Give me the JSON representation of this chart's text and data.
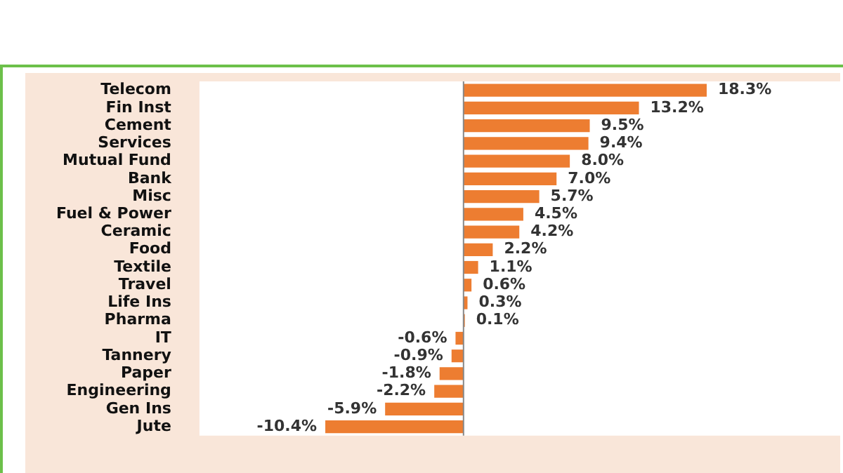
{
  "chart_data": {
    "type": "bar",
    "orientation": "horizontal",
    "categories": [
      "Telecom",
      "Fin Inst",
      "Cement",
      "Services",
      "Mutual Fund",
      "Bank",
      "Misc",
      "Fuel & Power",
      "Ceramic",
      "Food",
      "Textile",
      "Travel",
      "Life Ins",
      "Pharma",
      "IT",
      "Tannery",
      "Paper",
      "Engineering",
      "Gen Ins",
      "Jute"
    ],
    "values": [
      18.3,
      13.2,
      9.5,
      9.4,
      8.0,
      7.0,
      5.7,
      4.5,
      4.2,
      2.2,
      1.1,
      0.6,
      0.3,
      0.1,
      -0.6,
      -0.9,
      -1.8,
      -2.2,
      -5.9,
      -10.4
    ],
    "value_labels": [
      "18.3%",
      "13.2%",
      "9.5%",
      "9.4%",
      "8.0%",
      "7.0%",
      "5.7%",
      "4.5%",
      "4.2%",
      "2.2%",
      "1.1%",
      "0.6%",
      "0.3%",
      "0.1%",
      "-0.6%",
      "-0.9%",
      "-1.8%",
      "-2.2%",
      "-5.9%",
      "-10.4%"
    ],
    "color": "#ed7d31",
    "grid": false,
    "legend": false,
    "tick_labels": "y"
  }
}
